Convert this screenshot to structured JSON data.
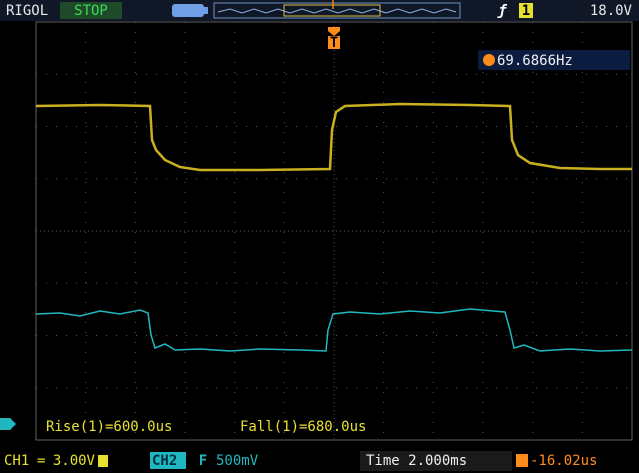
{
  "header": {
    "brand": "RIGOL",
    "status": "STOP",
    "trigger_marker": "T",
    "trigger_source": "1",
    "trigger_level": "18.0V"
  },
  "frequency": "69.6866Hz",
  "measurements": [
    "Rise(1)=600.0us",
    "Fall(1)=680.0us"
  ],
  "footer": {
    "ch1": "CH1",
    "ch1_scale": "3.00V",
    "ch2": "CH2",
    "ch2_coupling": "F",
    "ch2_scale": "500mV",
    "time": "Time 2.000ms",
    "trigger_offset": "-16.02us"
  }
}
